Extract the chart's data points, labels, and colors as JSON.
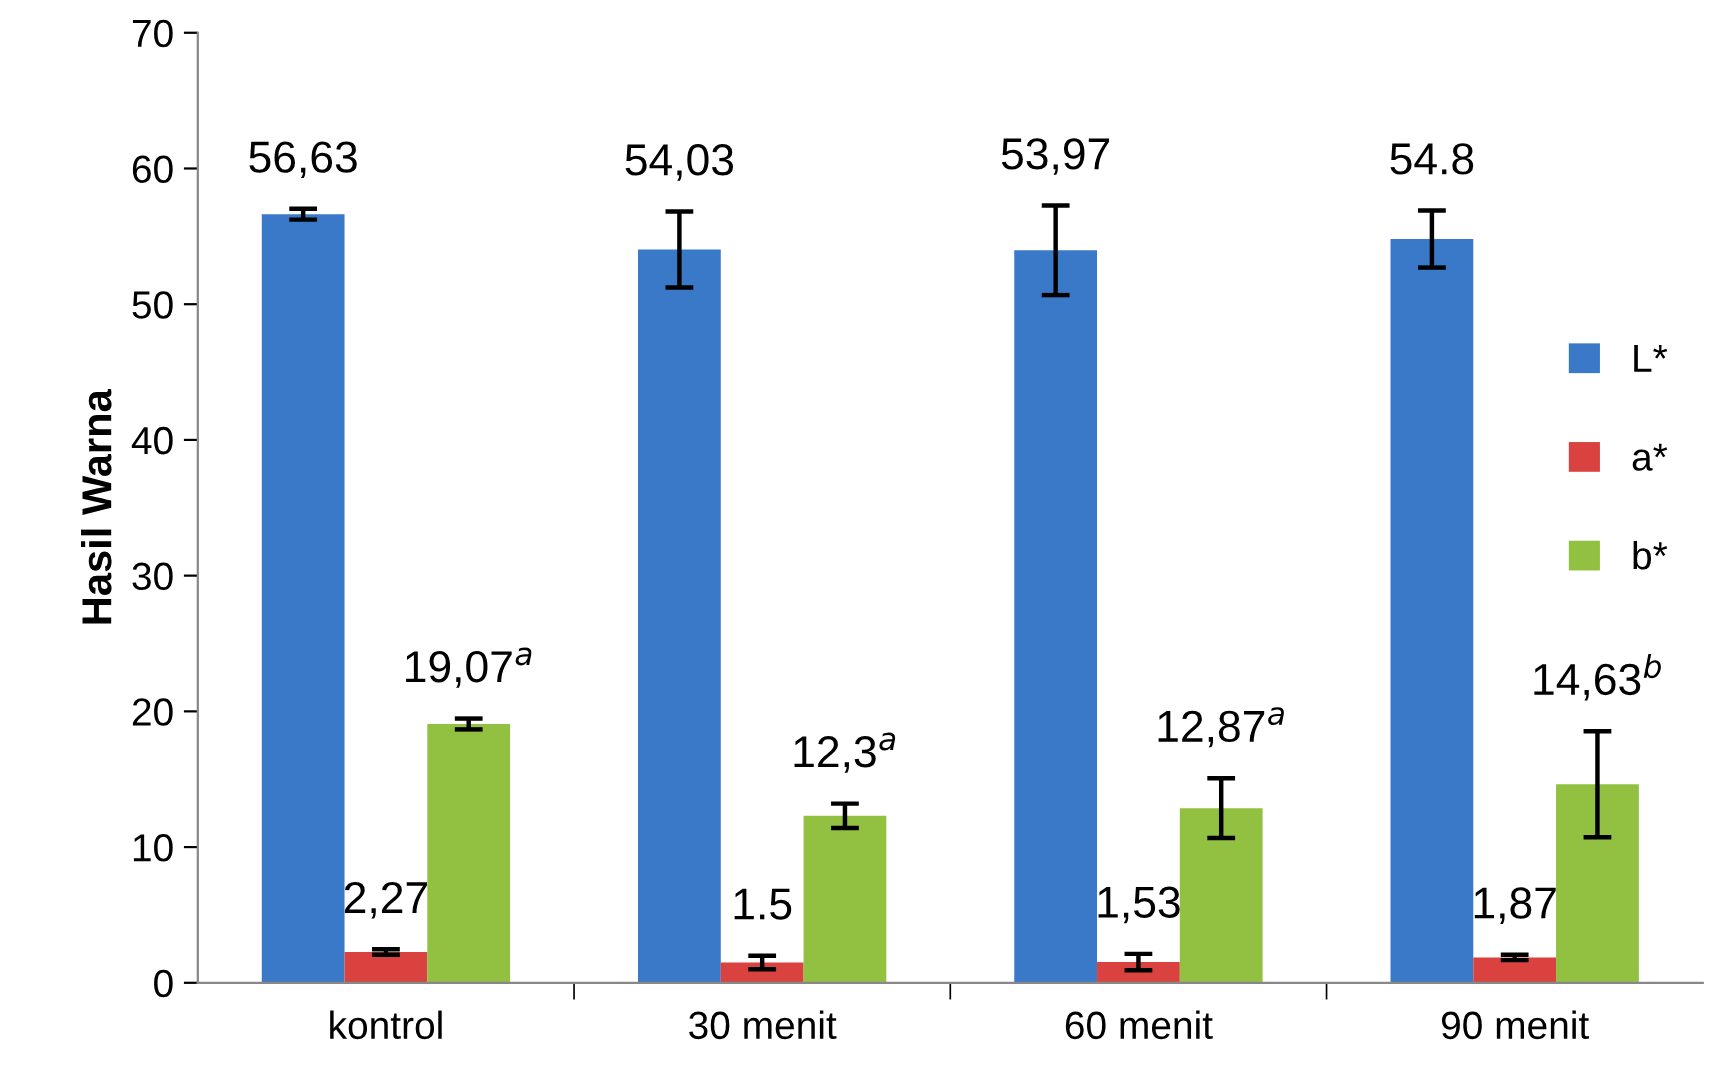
{
  "chart_data": {
    "type": "bar",
    "ylabel": "Hasil Warna",
    "categories": [
      "kontrol",
      "30 menit",
      "60 menit",
      "90 menit"
    ],
    "series": [
      {
        "name": "L*",
        "color": "#3a78c8",
        "values": [
          56.63,
          54.03,
          53.97,
          54.8
        ],
        "errors": [
          0.4,
          2.8,
          3.3,
          2.1
        ],
        "value_labels": [
          "56,63",
          "54,03",
          "53,97",
          "54.8"
        ]
      },
      {
        "name": "a*",
        "color": "#d9423f",
        "values": [
          2.27,
          1.5,
          1.53,
          1.87
        ],
        "errors": [
          0.2,
          0.5,
          0.6,
          0.2
        ],
        "value_labels": [
          "2,27",
          "1.5",
          "1,53",
          "1,87"
        ]
      },
      {
        "name": "b*",
        "color": "#92c040",
        "values": [
          19.07,
          12.3,
          12.87,
          14.63
        ],
        "errors": [
          0.4,
          0.9,
          2.2,
          3.9
        ],
        "value_labels": [
          "19,07$^{a}$",
          "12,3$^{a}$",
          "12,87$^{a}$",
          "14,63$^{b}$"
        ]
      }
    ],
    "ylim": [
      0,
      70
    ],
    "yticks": [
      0,
      10,
      20,
      30,
      40,
      50,
      60,
      70
    ],
    "grid": false,
    "legend": "right"
  }
}
